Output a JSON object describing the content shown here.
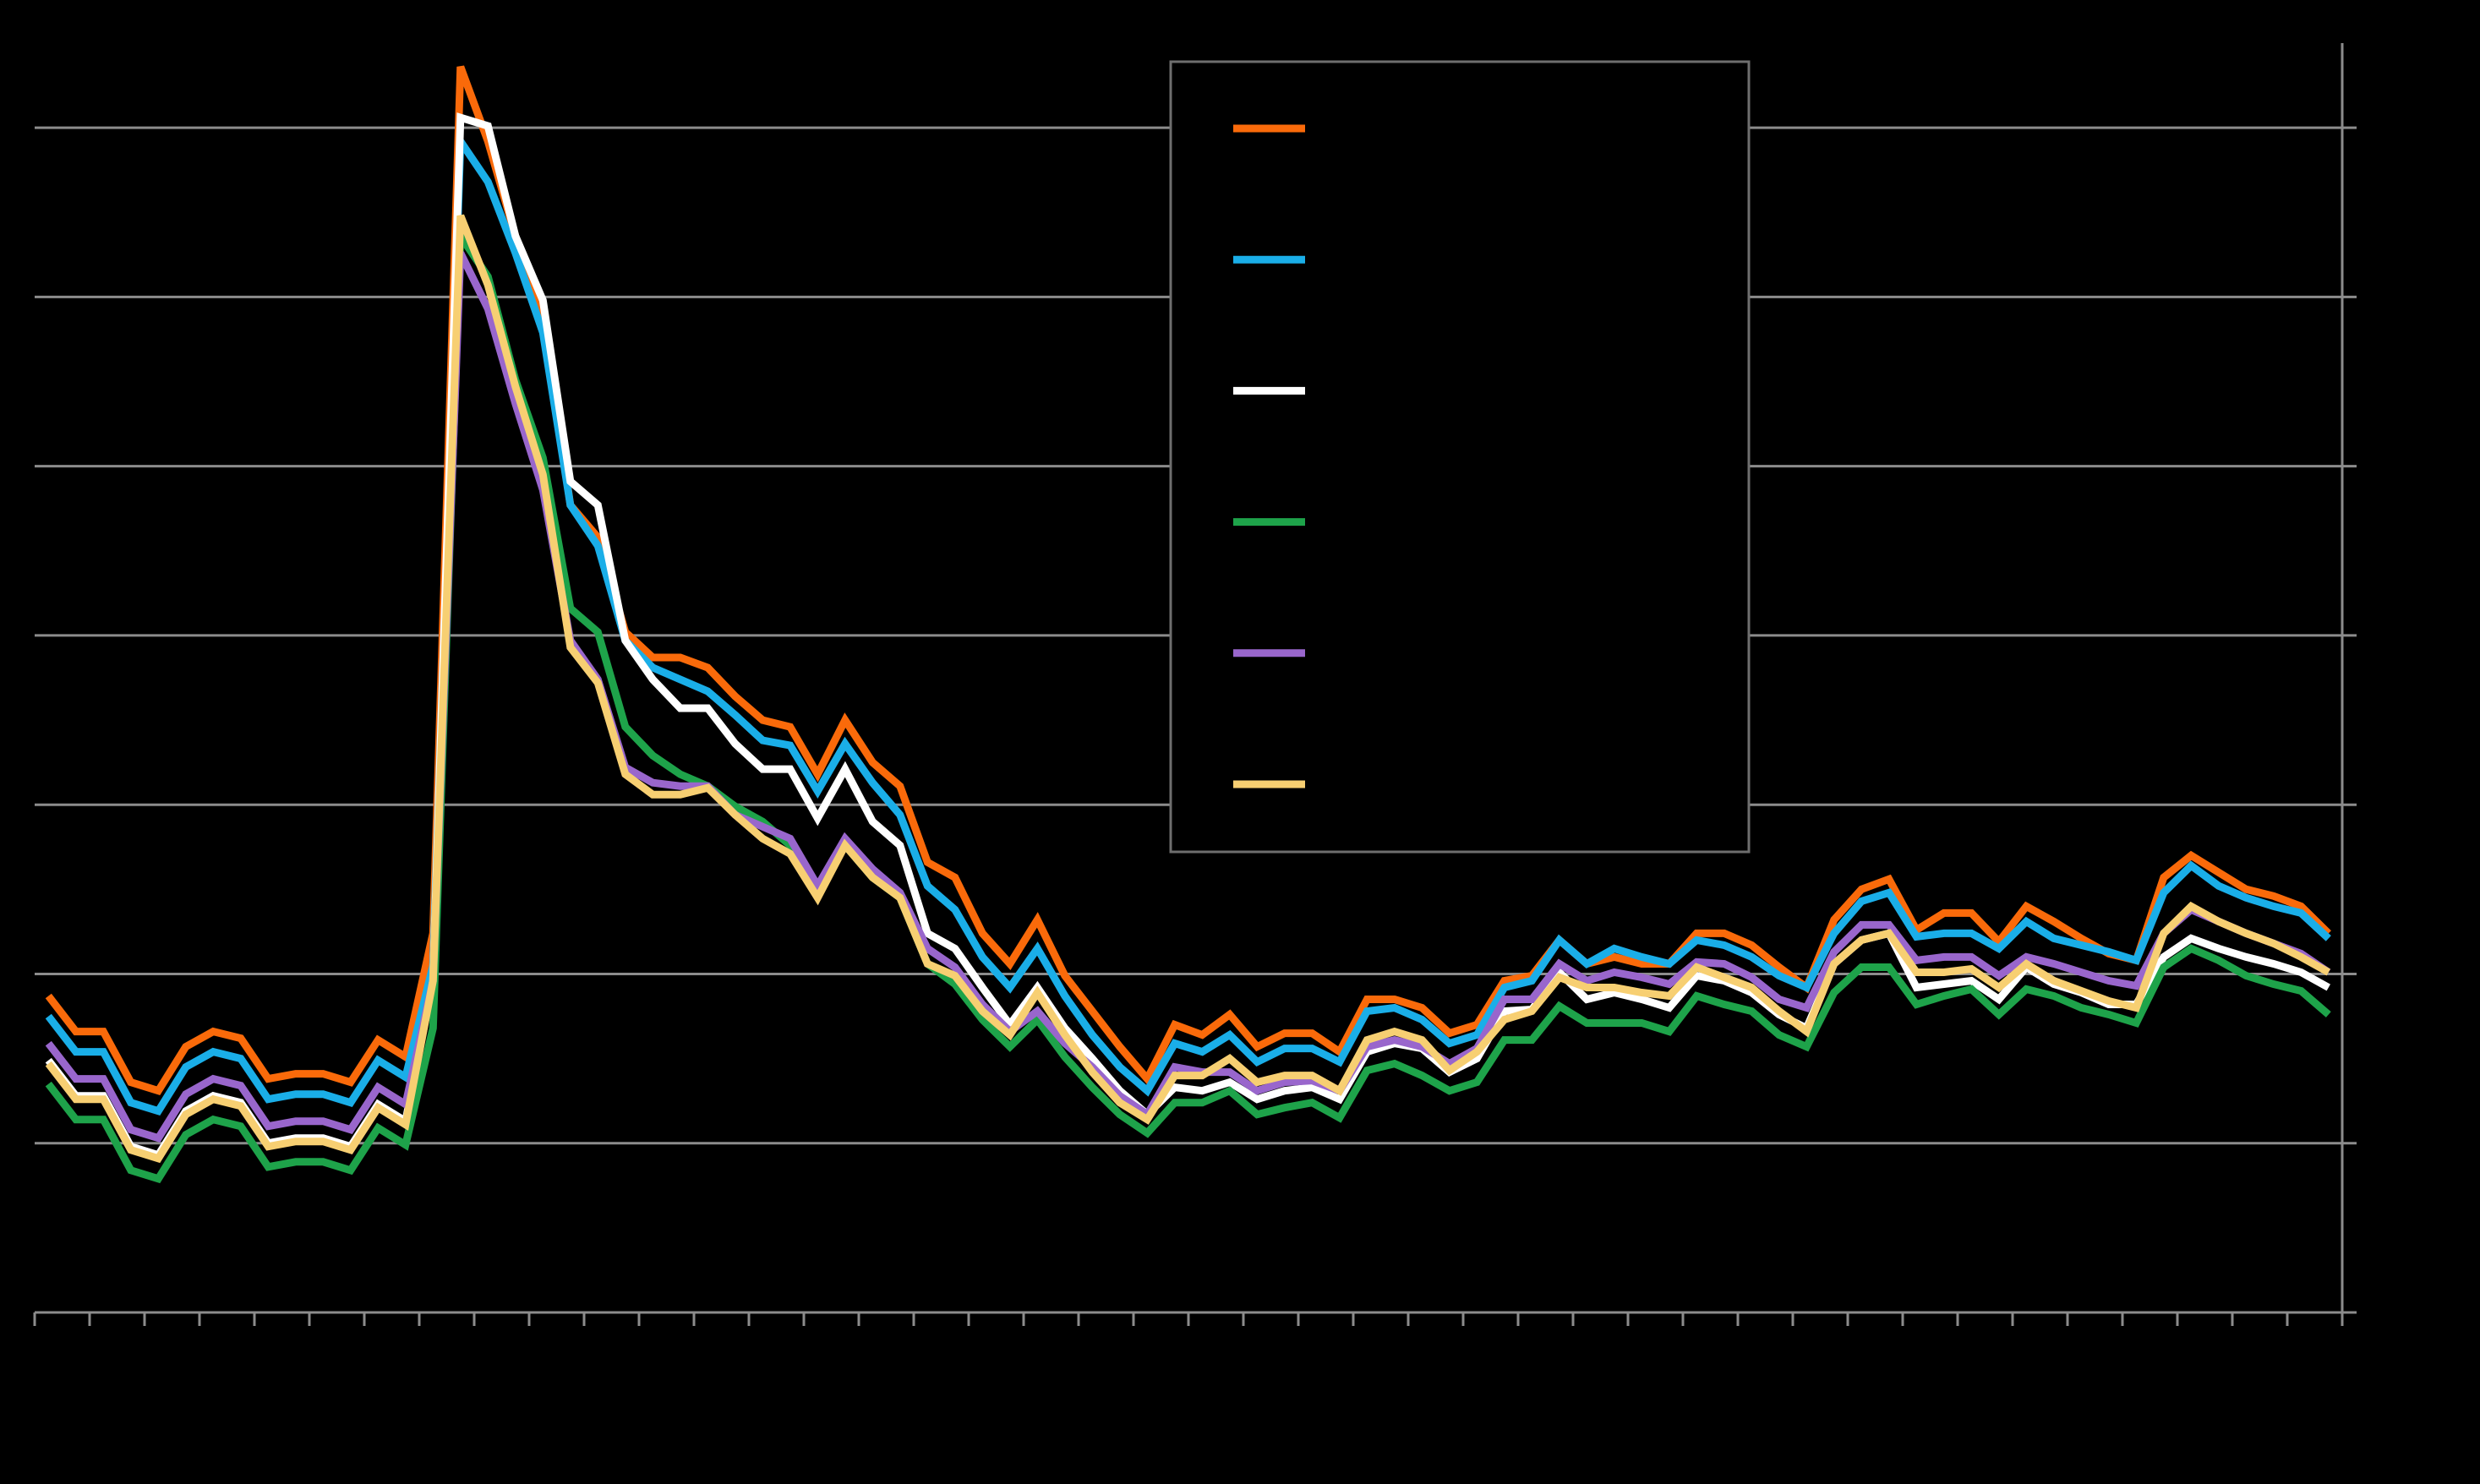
{
  "chart_data": {
    "type": "line",
    "categories": [
      null,
      null,
      null,
      null,
      null,
      null,
      null,
      null,
      null,
      null,
      null,
      null,
      null,
      null,
      null,
      null,
      null,
      null,
      null,
      null,
      null,
      null,
      null,
      null,
      null,
      null,
      null,
      null,
      null,
      null,
      null,
      null,
      null,
      null,
      null,
      null,
      null,
      null,
      null,
      null,
      null,
      null,
      null,
      null,
      null,
      null,
      null,
      null,
      null,
      null,
      null,
      null,
      null,
      null,
      null,
      null,
      null,
      null,
      null,
      null,
      null,
      null,
      null,
      null,
      null,
      null,
      null,
      null,
      null,
      null,
      null,
      null,
      null,
      null,
      null,
      null,
      null,
      null,
      null,
      null,
      null,
      null,
      null,
      null
    ],
    "ylim": [
      0,
      75
    ],
    "yticks": [
      0,
      10,
      20,
      30,
      40,
      50,
      60,
      70
    ],
    "grid": true,
    "series": [
      {
        "color": "#fa6a0a",
        "values": [
          18.7,
          16.6,
          16.6,
          13.6,
          13.1,
          15.7,
          16.6,
          16.2,
          13.8,
          14.1,
          14.1,
          13.6,
          16.1,
          15.1,
          22.4,
          73.6,
          69.2,
          63.6,
          58.9,
          47.7,
          45.8,
          40.2,
          38.7,
          38.7,
          38.1,
          36.4,
          35.0,
          34.6,
          31.8,
          35.0,
          32.5,
          31.1,
          26.6,
          25.7,
          22.4,
          20.6,
          23.2,
          19.9,
          17.8,
          15.7,
          13.8,
          17.0,
          16.4,
          17.6,
          15.7,
          16.5,
          16.5,
          15.4,
          18.5,
          18.5,
          18.0,
          16.5,
          17.0,
          19.6,
          19.9,
          22.0,
          20.6,
          21.0,
          20.6,
          20.6,
          22.4,
          22.4,
          21.7,
          20.4,
          19.2,
          23.2,
          25.0,
          25.6,
          22.6,
          23.6,
          23.6,
          21.9,
          24.0,
          23.1,
          22.1,
          21.2,
          20.8,
          25.7,
          27.0,
          26.0,
          25.0,
          24.6,
          24.0,
          22.4
        ]
      },
      {
        "color": "#1aaee8",
        "values": [
          17.5,
          15.4,
          15.4,
          12.4,
          11.9,
          14.5,
          15.4,
          15.0,
          12.6,
          12.9,
          12.9,
          12.4,
          14.9,
          13.9,
          20.5,
          69.2,
          66.8,
          62.6,
          57.9,
          47.7,
          45.3,
          39.7,
          38.1,
          37.4,
          36.7,
          35.3,
          33.8,
          33.5,
          30.8,
          33.6,
          31.3,
          29.4,
          25.2,
          23.8,
          21.0,
          19.2,
          21.5,
          18.7,
          16.4,
          14.5,
          13.1,
          15.9,
          15.4,
          16.4,
          14.8,
          15.6,
          15.6,
          14.8,
          17.8,
          18.0,
          17.3,
          15.9,
          16.4,
          19.2,
          19.6,
          22.0,
          20.6,
          21.5,
          21.0,
          20.6,
          22.0,
          21.7,
          21.0,
          19.9,
          19.2,
          22.4,
          24.3,
          24.8,
          22.2,
          22.4,
          22.4,
          21.5,
          23.1,
          22.1,
          21.7,
          21.3,
          20.8,
          24.8,
          26.4,
          25.2,
          24.5,
          24.0,
          23.6,
          22.1
        ]
      },
      {
        "color": "#ffffff",
        "values": [
          14.9,
          12.8,
          12.8,
          9.8,
          9.3,
          11.9,
          12.8,
          12.4,
          10.0,
          10.3,
          10.3,
          9.8,
          12.3,
          11.3,
          19.6,
          70.6,
          70.1,
          63.6,
          59.8,
          49.1,
          47.7,
          39.7,
          37.4,
          35.7,
          35.7,
          33.6,
          32.1,
          32.1,
          29.2,
          32.1,
          29.0,
          27.6,
          22.4,
          21.5,
          19.2,
          17.0,
          19.2,
          16.8,
          15.0,
          13.1,
          11.7,
          13.3,
          13.1,
          13.6,
          12.6,
          13.1,
          13.3,
          12.6,
          15.4,
          15.9,
          15.6,
          14.2,
          15.0,
          17.8,
          17.9,
          20.1,
          18.5,
          18.9,
          18.5,
          18.0,
          19.9,
          19.6,
          18.9,
          17.6,
          16.8,
          20.6,
          22.0,
          22.4,
          19.2,
          19.4,
          19.6,
          18.5,
          20.4,
          19.4,
          18.9,
          18.2,
          18.2,
          21.0,
          22.1,
          21.5,
          21.0,
          20.6,
          20.1,
          19.2
        ]
      },
      {
        "color": "#1ea34a",
        "values": [
          13.5,
          11.4,
          11.4,
          8.4,
          7.9,
          10.5,
          11.4,
          11.0,
          8.6,
          8.9,
          8.9,
          8.4,
          10.9,
          9.9,
          16.8,
          63.6,
          61.2,
          55.1,
          50.5,
          41.6,
          40.2,
          34.6,
          32.9,
          31.8,
          31.1,
          29.9,
          29.0,
          27.6,
          25.2,
          27.6,
          25.7,
          24.5,
          20.6,
          19.4,
          17.3,
          15.7,
          17.3,
          15.1,
          13.3,
          11.7,
          10.6,
          12.4,
          12.4,
          13.1,
          11.7,
          12.1,
          12.4,
          11.5,
          14.3,
          14.7,
          14.0,
          13.1,
          13.6,
          16.1,
          16.1,
          18.1,
          17.1,
          17.1,
          17.1,
          16.6,
          18.7,
          18.2,
          17.8,
          16.4,
          15.7,
          18.9,
          20.4,
          20.4,
          18.2,
          18.7,
          19.1,
          17.6,
          19.1,
          18.7,
          18.0,
          17.6,
          17.1,
          20.4,
          21.5,
          20.8,
          19.9,
          19.4,
          19.0,
          17.6
        ]
      },
      {
        "color": "#9966cc",
        "values": [
          15.9,
          13.8,
          13.8,
          10.8,
          10.3,
          12.9,
          13.8,
          13.4,
          11.0,
          11.3,
          11.3,
          10.8,
          13.3,
          12.3,
          19.6,
          62.6,
          59.3,
          53.7,
          48.6,
          39.7,
          37.4,
          32.2,
          31.3,
          31.1,
          31.1,
          29.4,
          28.7,
          28.0,
          25.2,
          28.0,
          26.2,
          24.8,
          21.5,
          20.4,
          18.2,
          16.6,
          17.8,
          15.9,
          14.5,
          12.8,
          11.7,
          14.5,
          14.2,
          14.2,
          13.1,
          13.6,
          13.7,
          13.1,
          15.7,
          16.1,
          15.7,
          14.7,
          15.6,
          18.5,
          18.5,
          20.6,
          19.6,
          20.1,
          19.8,
          19.4,
          20.7,
          20.6,
          19.8,
          18.5,
          18.0,
          21.3,
          22.9,
          22.9,
          20.8,
          21.0,
          21.0,
          19.9,
          21.0,
          20.6,
          20.1,
          19.6,
          19.3,
          22.4,
          23.8,
          23.1,
          22.4,
          21.8,
          21.2,
          20.1
        ]
      },
      {
        "color": "#f7cf72",
        "values": [
          14.7,
          12.6,
          12.6,
          9.6,
          9.1,
          11.7,
          12.6,
          12.2,
          9.8,
          10.1,
          10.1,
          9.6,
          12.1,
          11.1,
          19.6,
          64.8,
          60.7,
          54.7,
          49.5,
          39.3,
          37.2,
          31.8,
          30.6,
          30.6,
          31.0,
          29.4,
          28.0,
          27.1,
          24.5,
          27.6,
          25.7,
          24.5,
          20.6,
          19.9,
          17.8,
          16.4,
          18.9,
          16.4,
          14.2,
          12.4,
          11.4,
          14.0,
          14.0,
          15.0,
          13.6,
          14.0,
          14.0,
          13.1,
          16.1,
          16.6,
          16.1,
          14.3,
          15.4,
          17.3,
          17.8,
          19.8,
          19.2,
          19.2,
          18.9,
          18.7,
          20.4,
          19.8,
          19.2,
          17.8,
          16.6,
          20.6,
          22.0,
          22.4,
          20.1,
          20.1,
          20.3,
          19.2,
          20.6,
          19.6,
          19.0,
          18.4,
          18.0,
          22.4,
          24.0,
          23.1,
          22.4,
          21.8,
          21.0,
          20.1
        ]
      }
    ]
  }
}
